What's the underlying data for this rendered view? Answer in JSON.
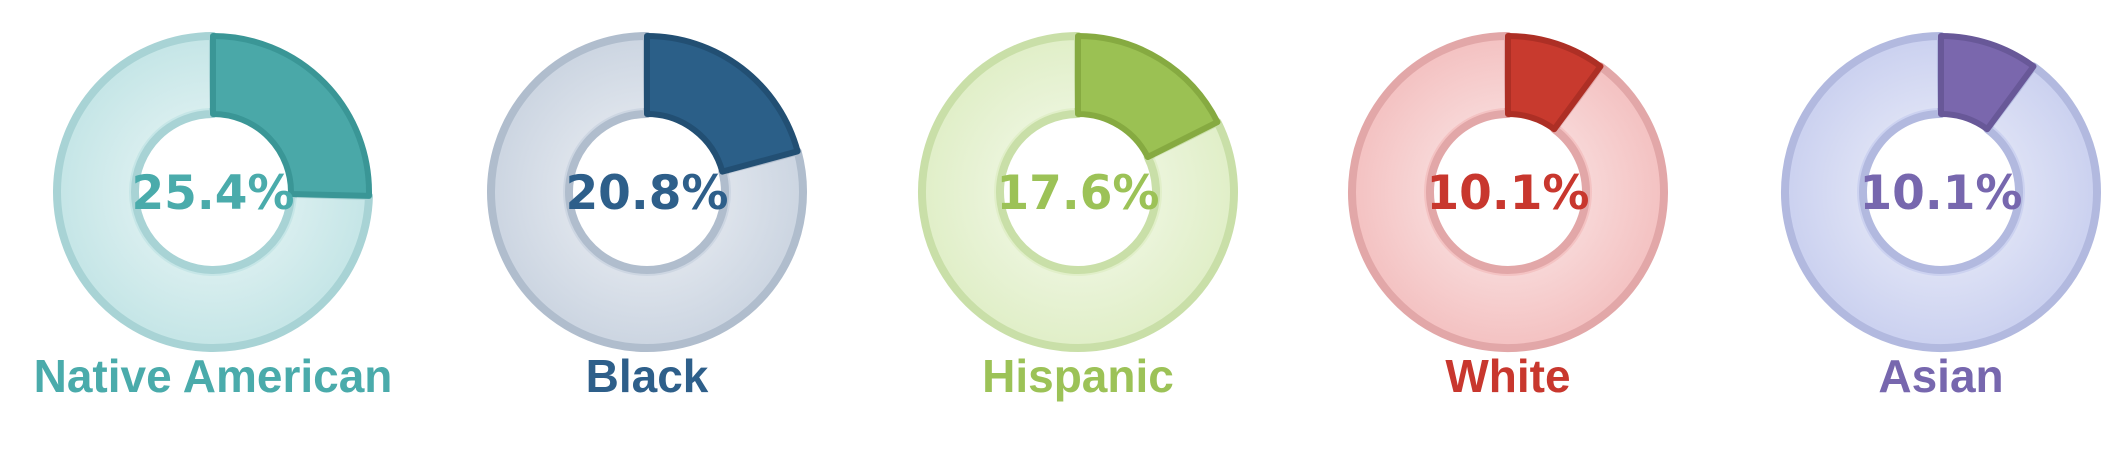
{
  "chart_data": [
    {
      "type": "pie",
      "style": "donut",
      "category": "Native American",
      "value": 25.4,
      "value_label": "25.4%",
      "colors": {
        "slice": "#4aa8a8",
        "slice_stroke": "#3a9696",
        "ring": "#c6e6e7",
        "ring_stroke": "#a8d3d5",
        "text": "#4aabab"
      }
    },
    {
      "type": "pie",
      "style": "donut",
      "category": "Black",
      "value": 20.8,
      "value_label": "20.8%",
      "colors": {
        "slice": "#2b5f88",
        "slice_stroke": "#224f73",
        "ring": "#cdd6e2",
        "ring_stroke": "#b0bdcd",
        "text": "#2e5f8a"
      }
    },
    {
      "type": "pie",
      "style": "donut",
      "category": "Hispanic",
      "value": 17.6,
      "value_label": "17.6%",
      "colors": {
        "slice": "#9bc153",
        "slice_stroke": "#86aa41",
        "ring": "#e1efc9",
        "ring_stroke": "#c9dfa8",
        "text": "#9cc257"
      }
    },
    {
      "type": "pie",
      "style": "donut",
      "category": "White",
      "value": 10.1,
      "value_label": "10.1%",
      "colors": {
        "slice": "#c83a2e",
        "slice_stroke": "#ad2f25",
        "ring": "#f4c3c3",
        "ring_stroke": "#e2a7a8",
        "text": "#c8372e"
      }
    },
    {
      "type": "pie",
      "style": "donut",
      "category": "Asian",
      "value": 10.1,
      "value_label": "10.1%",
      "colors": {
        "slice": "#7a67ad",
        "slice_stroke": "#685898",
        "ring": "#ccd2f0",
        "ring_stroke": "#b2b9df",
        "text": "#7767ae"
      }
    }
  ]
}
